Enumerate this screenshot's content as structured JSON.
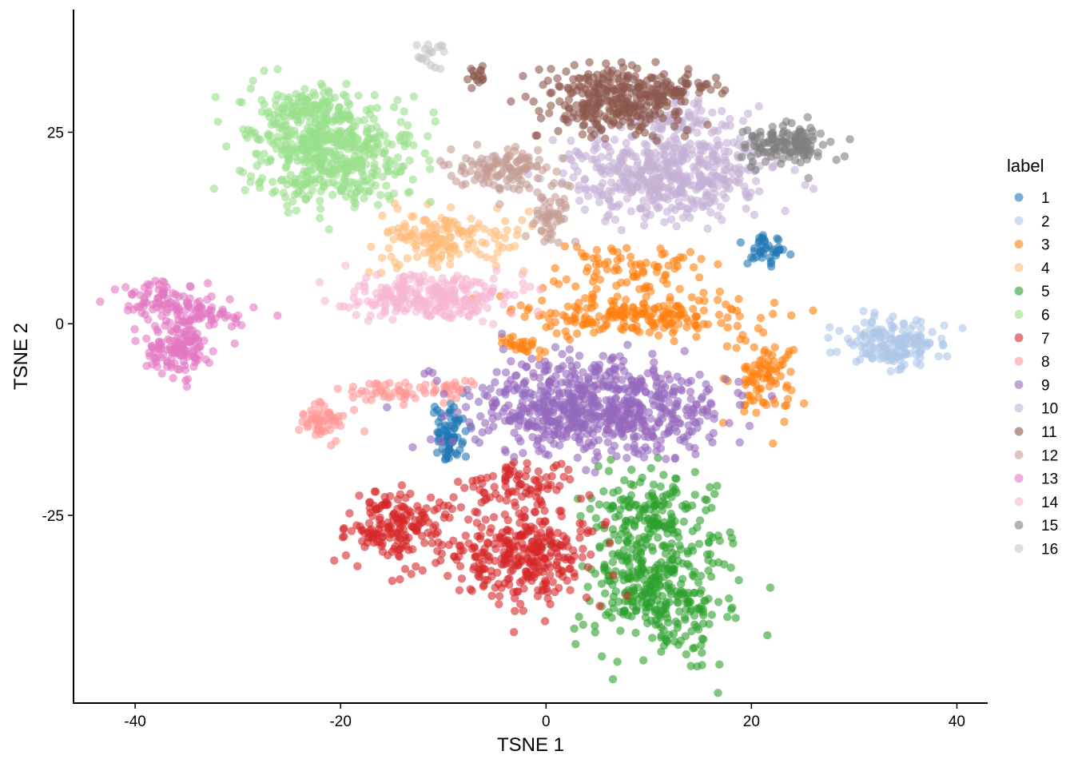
{
  "chart_data": {
    "type": "scatter",
    "xlabel": "TSNE 1",
    "ylabel": "TSNE 2",
    "xlim": [
      -46,
      43
    ],
    "ylim": [
      -49.5,
      41
    ],
    "x_ticks": [
      -40,
      -20,
      0,
      20,
      40
    ],
    "y_ticks": [
      -25,
      0,
      25
    ],
    "x_tick_labels": [
      "-40",
      "-20",
      "0",
      "20",
      "40"
    ],
    "y_tick_labels": [
      "-25",
      "0",
      "25"
    ],
    "grid": false,
    "legend_title": "label",
    "legend_position": "right",
    "point_opacity": 0.6,
    "series": [
      {
        "name": "1",
        "color": "#1f77b4",
        "clusters": [
          [
            -9.5,
            -14.5,
            1.2,
            3.0,
            70
          ],
          [
            21.5,
            9.8,
            1.3,
            1.2,
            40
          ]
        ]
      },
      {
        "name": "2",
        "color": "#aec7e8",
        "clusters": [
          [
            33.5,
            -2.5,
            3.2,
            2.0,
            160
          ]
        ]
      },
      {
        "name": "3",
        "color": "#ff7f0e",
        "clusters": [
          [
            8.5,
            1.0,
            8.0,
            1.8,
            200
          ],
          [
            8.0,
            7.5,
            5.0,
            2.2,
            80
          ],
          [
            21.0,
            -7.0,
            2.2,
            4.0,
            90
          ],
          [
            -2.5,
            -3.0,
            2.0,
            0.8,
            25
          ]
        ]
      },
      {
        "name": "4",
        "color": "#ffbb78",
        "clusters": [
          [
            -10.0,
            11.0,
            4.5,
            2.4,
            160
          ]
        ]
      },
      {
        "name": "5",
        "color": "#2ca02c",
        "clusters": [
          [
            11.0,
            -34.0,
            4.5,
            6.5,
            380
          ],
          [
            10.0,
            -24.0,
            4.0,
            3.5,
            120
          ]
        ]
      },
      {
        "name": "6",
        "color": "#98df8a",
        "clusters": [
          [
            -21.0,
            22.0,
            5.5,
            4.5,
            480
          ],
          [
            -23.0,
            28.0,
            3.5,
            2.0,
            100
          ]
        ]
      },
      {
        "name": "7",
        "color": "#d62728",
        "clusters": [
          [
            -2.0,
            -30.5,
            5.0,
            4.2,
            320
          ],
          [
            -14.5,
            -26.5,
            3.0,
            3.0,
            170
          ],
          [
            -3.0,
            -21.0,
            4.0,
            2.0,
            80
          ]
        ]
      },
      {
        "name": "8",
        "color": "#ff9896",
        "clusters": [
          [
            -21.5,
            -12.5,
            1.5,
            1.6,
            60
          ],
          [
            -15.0,
            -9.0,
            3.0,
            0.8,
            45
          ],
          [
            -9.0,
            -8.5,
            2.0,
            0.8,
            25
          ]
        ]
      },
      {
        "name": "9",
        "color": "#9467bd",
        "clusters": [
          [
            5.0,
            -11.0,
            8.0,
            4.0,
            700
          ]
        ]
      },
      {
        "name": "10",
        "color": "#c5b0d5",
        "clusters": [
          [
            12.0,
            19.5,
            7.0,
            3.8,
            480
          ],
          [
            13.0,
            26.0,
            4.0,
            2.2,
            90
          ]
        ]
      },
      {
        "name": "11",
        "color": "#8c564b",
        "clusters": [
          [
            6.5,
            29.0,
            4.5,
            3.0,
            300
          ],
          [
            13.0,
            31.0,
            2.0,
            1.5,
            50
          ],
          [
            -6.5,
            32.5,
            0.8,
            1.0,
            15
          ]
        ]
      },
      {
        "name": "12",
        "color": "#c49c94",
        "clusters": [
          [
            -4.5,
            20.0,
            3.5,
            2.0,
            120
          ],
          [
            0.5,
            14.0,
            1.5,
            2.5,
            50
          ]
        ]
      },
      {
        "name": "13",
        "color": "#e377c2",
        "clusters": [
          [
            -36.0,
            -3.0,
            2.0,
            2.2,
            130
          ],
          [
            -37.0,
            3.0,
            2.8,
            1.6,
            90
          ],
          [
            -32.5,
            1.0,
            2.5,
            0.8,
            35
          ]
        ]
      },
      {
        "name": "14",
        "color": "#f7b6d2",
        "clusters": [
          [
            -11.0,
            3.5,
            5.0,
            2.0,
            260
          ]
        ]
      },
      {
        "name": "15",
        "color": "#7f7f7f",
        "clusters": [
          [
            23.5,
            23.5,
            2.6,
            1.8,
            130
          ]
        ]
      },
      {
        "name": "16",
        "color": "#c7c7c7",
        "clusters": [
          [
            -11.0,
            35.0,
            0.9,
            1.0,
            18
          ]
        ]
      }
    ]
  }
}
